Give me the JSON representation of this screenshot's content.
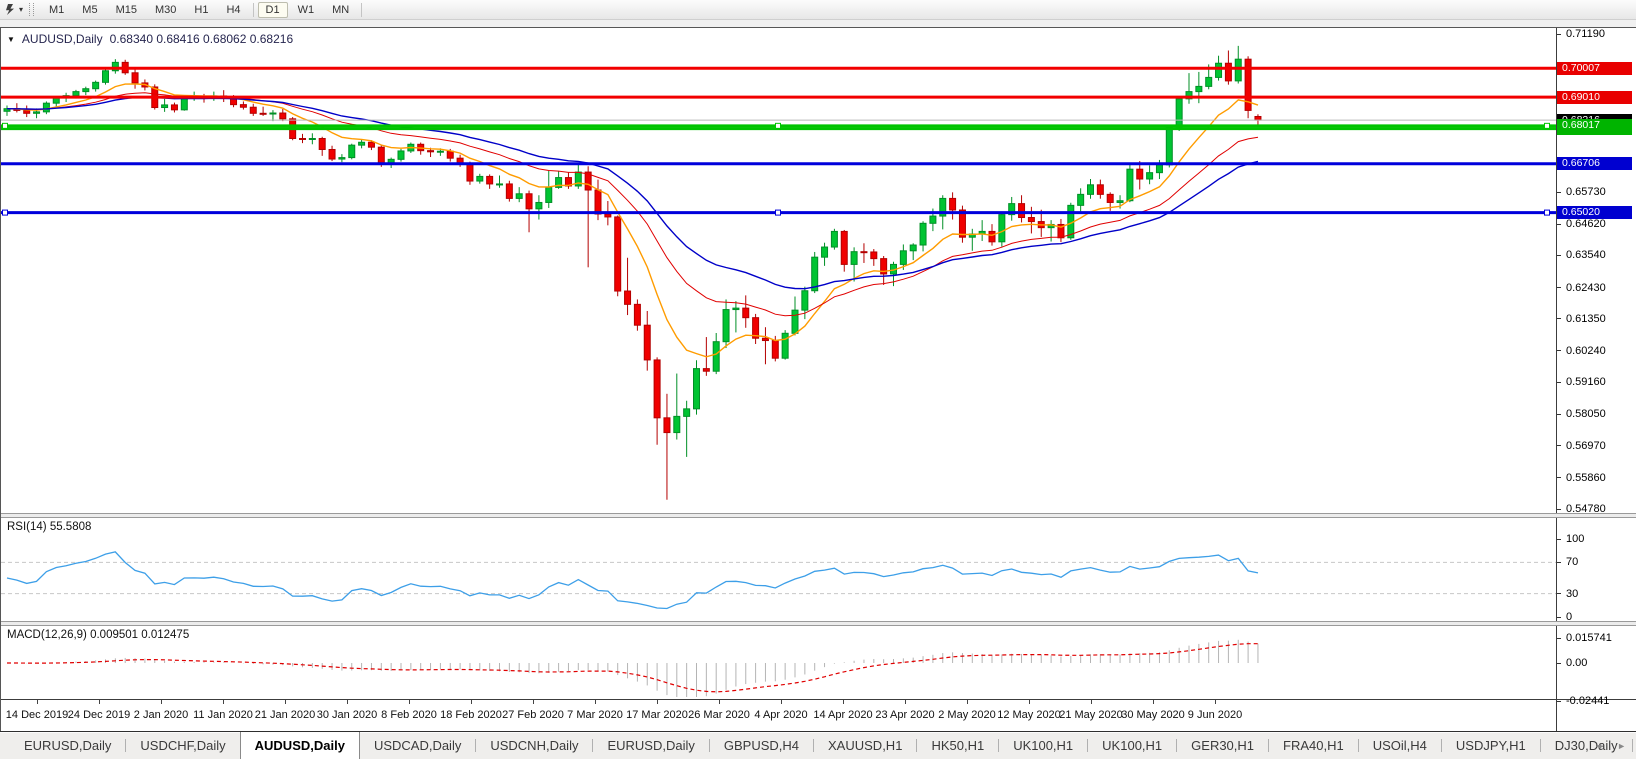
{
  "toolbar": {
    "timeframes": [
      "M1",
      "M5",
      "M15",
      "M30",
      "H1",
      "H4",
      "D1",
      "W1",
      "MN"
    ],
    "active_timeframe": "D1"
  },
  "chart_header": {
    "collapse_icon": "▼",
    "symbol": "AUDUSD,Daily",
    "ohlc": "0.68340 0.68416 0.68062 0.68216"
  },
  "price_axis": {
    "ticks": [
      "0.71190",
      "0.65730",
      "0.64620",
      "0.63540",
      "0.62430",
      "0.61350",
      "0.60240",
      "0.59160",
      "0.58050",
      "0.56970",
      "0.55860",
      "0.54780"
    ],
    "current_price_badge": "0.68216"
  },
  "rsi_panel": {
    "label": "RSI(14) 55.5808",
    "axis_labels": [
      "100",
      "70",
      "30",
      "0"
    ],
    "levels": [
      70,
      30
    ]
  },
  "macd_panel": {
    "label": "MACD(12,26,9) 0.009501 0.012475",
    "axis_labels": [
      "0.015741",
      "0.00",
      "-0.02441"
    ]
  },
  "time_axis": {
    "labels": [
      "14 Dec 2019",
      "24 Dec 2019",
      "2 Jan 2020",
      "11 Jan 2020",
      "21 Jan 2020",
      "30 Jan 2020",
      "8 Feb 2020",
      "18 Feb 2020",
      "27 Feb 2020",
      "7 Mar 2020",
      "17 Mar 2020",
      "26 Mar 2020",
      "4 Apr 2020",
      "14 Apr 2020",
      "23 Apr 2020",
      "2 May 2020",
      "12 May 2020",
      "21 May 2020",
      "30 May 2020",
      "9 Jun 2020"
    ]
  },
  "tabs": {
    "items": [
      "EURUSD,Daily",
      "USDCHF,Daily",
      "AUDUSD,Daily",
      "USDCAD,Daily",
      "USDCNH,Daily",
      "EURUSD,Daily",
      "GBPUSD,H4",
      "XAUUSD,H1",
      "HK50,H1",
      "UK100,H1",
      "UK100,H1",
      "GER30,H1",
      "FRA40,H1",
      "USOil,H4",
      "USDJPY,H1",
      "DJ30,Daily"
    ],
    "active_index": 2,
    "scroll_left": "◄",
    "scroll_right": "►"
  },
  "chart_data": {
    "type": "candlestick",
    "symbol": "AUDUSD",
    "timeframe": "Daily",
    "last_ohlc": {
      "open": 0.6834,
      "high": 0.68416,
      "low": 0.68062,
      "close": 0.68216
    },
    "price_range": {
      "max_tick": 0.7119,
      "min_tick": 0.5478
    },
    "x_labels": [
      "14 Dec 2019",
      "24 Dec 2019",
      "2 Jan 2020",
      "11 Jan 2020",
      "21 Jan 2020",
      "30 Jan 2020",
      "8 Feb 2020",
      "18 Feb 2020",
      "27 Feb 2020",
      "7 Mar 2020",
      "17 Mar 2020",
      "26 Mar 2020",
      "4 Apr 2020",
      "14 Apr 2020",
      "23 Apr 2020",
      "2 May 2020",
      "12 May 2020",
      "21 May 2020",
      "30 May 2020",
      "9 Jun 2020"
    ],
    "candles": [
      [
        0.6852,
        0.6872,
        0.6836,
        0.6861
      ],
      [
        0.6861,
        0.688,
        0.6848,
        0.6855
      ],
      [
        0.6855,
        0.6872,
        0.6832,
        0.6845
      ],
      [
        0.6845,
        0.6862,
        0.6828,
        0.685
      ],
      [
        0.685,
        0.6886,
        0.6842,
        0.688
      ],
      [
        0.688,
        0.6904,
        0.6868,
        0.6898
      ],
      [
        0.6898,
        0.6916,
        0.6884,
        0.6906
      ],
      [
        0.6906,
        0.6926,
        0.6896,
        0.692
      ],
      [
        0.692,
        0.6937,
        0.6908,
        0.693
      ],
      [
        0.693,
        0.6958,
        0.692,
        0.6952
      ],
      [
        0.6952,
        0.7,
        0.6944,
        0.6992
      ],
      [
        0.6992,
        0.7032,
        0.6982,
        0.7021
      ],
      [
        0.7021,
        0.703,
        0.6978,
        0.6985
      ],
      [
        0.6985,
        0.7,
        0.693,
        0.695
      ],
      [
        0.695,
        0.6962,
        0.6924,
        0.6936
      ],
      [
        0.6936,
        0.6945,
        0.6858,
        0.6865
      ],
      [
        0.6865,
        0.6895,
        0.685,
        0.6874
      ],
      [
        0.6874,
        0.6882,
        0.6848,
        0.6857
      ],
      [
        0.6857,
        0.6906,
        0.6854,
        0.69
      ],
      [
        0.69,
        0.692,
        0.6888,
        0.6901
      ],
      [
        0.6901,
        0.6912,
        0.6882,
        0.6899
      ],
      [
        0.6899,
        0.692,
        0.6888,
        0.6905
      ],
      [
        0.6905,
        0.6925,
        0.6884,
        0.6896
      ],
      [
        0.6896,
        0.6908,
        0.6866,
        0.6875
      ],
      [
        0.6875,
        0.6886,
        0.6858,
        0.6866
      ],
      [
        0.6866,
        0.6878,
        0.6836,
        0.6845
      ],
      [
        0.6845,
        0.6868,
        0.6836,
        0.6844
      ],
      [
        0.6844,
        0.6856,
        0.6818,
        0.6846
      ],
      [
        0.6846,
        0.686,
        0.6818,
        0.6826
      ],
      [
        0.6826,
        0.6832,
        0.6752,
        0.6758
      ],
      [
        0.6758,
        0.6774,
        0.6742,
        0.6756
      ],
      [
        0.6756,
        0.6776,
        0.6738,
        0.6758
      ],
      [
        0.6758,
        0.6764,
        0.6698,
        0.672
      ],
      [
        0.672,
        0.6733,
        0.668,
        0.6687
      ],
      [
        0.6687,
        0.6704,
        0.6676,
        0.6692
      ],
      [
        0.6692,
        0.674,
        0.6686,
        0.6735
      ],
      [
        0.6735,
        0.6756,
        0.6724,
        0.6745
      ],
      [
        0.6745,
        0.6752,
        0.6718,
        0.6728
      ],
      [
        0.6728,
        0.6734,
        0.666,
        0.667
      ],
      [
        0.667,
        0.6692,
        0.6656,
        0.6686
      ],
      [
        0.6686,
        0.6722,
        0.6678,
        0.6715
      ],
      [
        0.6715,
        0.6744,
        0.6708,
        0.6738
      ],
      [
        0.6738,
        0.6744,
        0.6702,
        0.6716
      ],
      [
        0.6716,
        0.6726,
        0.6694,
        0.6712
      ],
      [
        0.6712,
        0.6724,
        0.6698,
        0.6714
      ],
      [
        0.6714,
        0.6722,
        0.6678,
        0.669
      ],
      [
        0.669,
        0.6702,
        0.666,
        0.6673
      ],
      [
        0.6673,
        0.6678,
        0.6598,
        0.6611
      ],
      [
        0.6611,
        0.6636,
        0.6602,
        0.6627
      ],
      [
        0.6627,
        0.6634,
        0.6584,
        0.6601
      ],
      [
        0.6601,
        0.663,
        0.6588,
        0.6601
      ],
      [
        0.6601,
        0.6612,
        0.654,
        0.6551
      ],
      [
        0.6551,
        0.659,
        0.6538,
        0.6567
      ],
      [
        0.6567,
        0.6578,
        0.6434,
        0.6515
      ],
      [
        0.6515,
        0.6562,
        0.6478,
        0.6537
      ],
      [
        0.6537,
        0.6646,
        0.6518,
        0.6589
      ],
      [
        0.6589,
        0.6646,
        0.6584,
        0.6623
      ],
      [
        0.6623,
        0.6642,
        0.6584,
        0.6594
      ],
      [
        0.6594,
        0.6672,
        0.6584,
        0.6642
      ],
      [
        0.6642,
        0.6662,
        0.6313,
        0.658
      ],
      [
        0.658,
        0.6616,
        0.6476,
        0.6497
      ],
      [
        0.6497,
        0.6542,
        0.6458,
        0.6487
      ],
      [
        0.6487,
        0.6492,
        0.6213,
        0.6231
      ],
      [
        0.6231,
        0.6346,
        0.6148,
        0.6185
      ],
      [
        0.6185,
        0.6202,
        0.6094,
        0.6113
      ],
      [
        0.6113,
        0.6162,
        0.5956,
        0.5993
      ],
      [
        0.5993,
        0.6002,
        0.57,
        0.5793
      ],
      [
        0.5793,
        0.5876,
        0.551,
        0.5742
      ],
      [
        0.5742,
        0.5946,
        0.5718,
        0.5798
      ],
      [
        0.5798,
        0.5852,
        0.5658,
        0.5824
      ],
      [
        0.5824,
        0.5992,
        0.5804,
        0.5963
      ],
      [
        0.5963,
        0.6072,
        0.5938,
        0.5954
      ],
      [
        0.5954,
        0.6086,
        0.5944,
        0.6056
      ],
      [
        0.6056,
        0.6202,
        0.6034,
        0.6167
      ],
      [
        0.6167,
        0.6196,
        0.6088,
        0.6172
      ],
      [
        0.6172,
        0.6216,
        0.6104,
        0.6139
      ],
      [
        0.6139,
        0.6152,
        0.6048,
        0.6068
      ],
      [
        0.6068,
        0.6106,
        0.5978,
        0.606
      ],
      [
        0.606,
        0.6076,
        0.5988,
        0.5999
      ],
      [
        0.5999,
        0.6096,
        0.5994,
        0.6085
      ],
      [
        0.6085,
        0.6212,
        0.6078,
        0.6165
      ],
      [
        0.6165,
        0.6246,
        0.6134,
        0.6232
      ],
      [
        0.6232,
        0.6366,
        0.6224,
        0.6348
      ],
      [
        0.6348,
        0.6398,
        0.6318,
        0.6383
      ],
      [
        0.6383,
        0.6446,
        0.6374,
        0.6437
      ],
      [
        0.6437,
        0.6442,
        0.6298,
        0.6323
      ],
      [
        0.6323,
        0.6382,
        0.6264,
        0.6367
      ],
      [
        0.6367,
        0.6396,
        0.6328,
        0.6366
      ],
      [
        0.6366,
        0.6376,
        0.6318,
        0.6343
      ],
      [
        0.6343,
        0.6352,
        0.6252,
        0.629
      ],
      [
        0.629,
        0.6332,
        0.6248,
        0.6323
      ],
      [
        0.6323,
        0.6392,
        0.6304,
        0.637
      ],
      [
        0.637,
        0.6396,
        0.6338,
        0.639
      ],
      [
        0.639,
        0.6472,
        0.6368,
        0.6465
      ],
      [
        0.6465,
        0.6516,
        0.6438,
        0.649
      ],
      [
        0.649,
        0.6562,
        0.6444,
        0.6551
      ],
      [
        0.6551,
        0.6572,
        0.6478,
        0.6511
      ],
      [
        0.6511,
        0.6526,
        0.6398,
        0.6417
      ],
      [
        0.6417,
        0.6446,
        0.637,
        0.6428
      ],
      [
        0.6428,
        0.6476,
        0.6404,
        0.6437
      ],
      [
        0.6437,
        0.6462,
        0.6388,
        0.6401
      ],
      [
        0.6401,
        0.6506,
        0.6384,
        0.6495
      ],
      [
        0.6495,
        0.6556,
        0.6474,
        0.6533
      ],
      [
        0.6533,
        0.6562,
        0.6468,
        0.6485
      ],
      [
        0.6485,
        0.6522,
        0.643,
        0.6471
      ],
      [
        0.6471,
        0.6512,
        0.6418,
        0.645
      ],
      [
        0.645,
        0.6476,
        0.6402,
        0.6461
      ],
      [
        0.6461,
        0.648,
        0.64,
        0.6415
      ],
      [
        0.6415,
        0.6536,
        0.6408,
        0.6527
      ],
      [
        0.6527,
        0.6586,
        0.6506,
        0.6565
      ],
      [
        0.6565,
        0.6618,
        0.655,
        0.6598
      ],
      [
        0.6598,
        0.6616,
        0.655,
        0.6565
      ],
      [
        0.6565,
        0.6572,
        0.6508,
        0.6537
      ],
      [
        0.6537,
        0.6562,
        0.6516,
        0.6543
      ],
      [
        0.6543,
        0.6675,
        0.6538,
        0.6652
      ],
      [
        0.6652,
        0.668,
        0.6582,
        0.6618
      ],
      [
        0.6618,
        0.6665,
        0.66,
        0.664
      ],
      [
        0.664,
        0.6684,
        0.6618,
        0.6667
      ],
      [
        0.6667,
        0.6804,
        0.6658,
        0.6798
      ],
      [
        0.6798,
        0.6902,
        0.6784,
        0.6895
      ],
      [
        0.6895,
        0.6984,
        0.6878,
        0.692
      ],
      [
        0.692,
        0.6988,
        0.688,
        0.6938
      ],
      [
        0.6938,
        0.7014,
        0.6928,
        0.6969
      ],
      [
        0.6969,
        0.7044,
        0.6958,
        0.7018
      ],
      [
        0.7018,
        0.7062,
        0.6944,
        0.6957
      ],
      [
        0.6957,
        0.7078,
        0.6948,
        0.7032
      ],
      [
        0.7032,
        0.7042,
        0.6828,
        0.6855
      ],
      [
        0.6834,
        0.68416,
        0.68062,
        0.68216
      ]
    ],
    "horizontal_lines": [
      {
        "price": 0.70007,
        "color": "#f20000",
        "width": 3,
        "badge": "#e80000",
        "z": 1,
        "selected": false
      },
      {
        "price": 0.6901,
        "color": "#f20000",
        "width": 3,
        "badge": "#e80000",
        "z": 1,
        "selected": false
      },
      {
        "price": 0.6792,
        "color": "#00c400",
        "width": 3,
        "badge": "#00b400",
        "z": 1,
        "selected": false
      },
      {
        "price": 0.66706,
        "color": "#0000dc",
        "width": 3,
        "badge": "#0000d0",
        "z": 1,
        "selected": false
      },
      {
        "price": 0.6502,
        "color": "#0000dc",
        "width": 3,
        "badge": "#0000d0",
        "z": 1,
        "selected": true
      },
      {
        "price": 0.68216,
        "color": "#b8b8b8",
        "width": 1,
        "badge": "#000000",
        "z": 2,
        "selected": false,
        "role": "current-price"
      },
      {
        "price": 0.68017,
        "color": "#00c400",
        "width": 3,
        "badge": "#00b400",
        "z": 3,
        "selected": true
      }
    ],
    "moving_averages": [
      {
        "name": "fast",
        "color": "#ff9c00",
        "period": 10
      },
      {
        "name": "medium",
        "color": "#e00000",
        "period": 22
      },
      {
        "name": "slow",
        "color": "#0000c8",
        "period": 34
      }
    ],
    "indicators": {
      "rsi": {
        "period": 14,
        "last": 55.5808,
        "levels": [
          70,
          30
        ],
        "range": [
          0,
          100
        ]
      },
      "macd": {
        "fast": 12,
        "slow": 26,
        "signal": 9,
        "values_label": "0.009501 0.012475",
        "axis_max": 0.015741,
        "axis_min": -0.02441
      }
    },
    "colors": {
      "bull": "#00c432",
      "bull_border": "#008f26",
      "bear": "#f00000",
      "bear_border": "#b40000",
      "rsi_line": "#3d9fe8",
      "rsi_levels": "#c8c8c8",
      "macd_hist": "#b4b4b4",
      "macd_signal": "#e00000",
      "background": "#ffffff"
    }
  }
}
